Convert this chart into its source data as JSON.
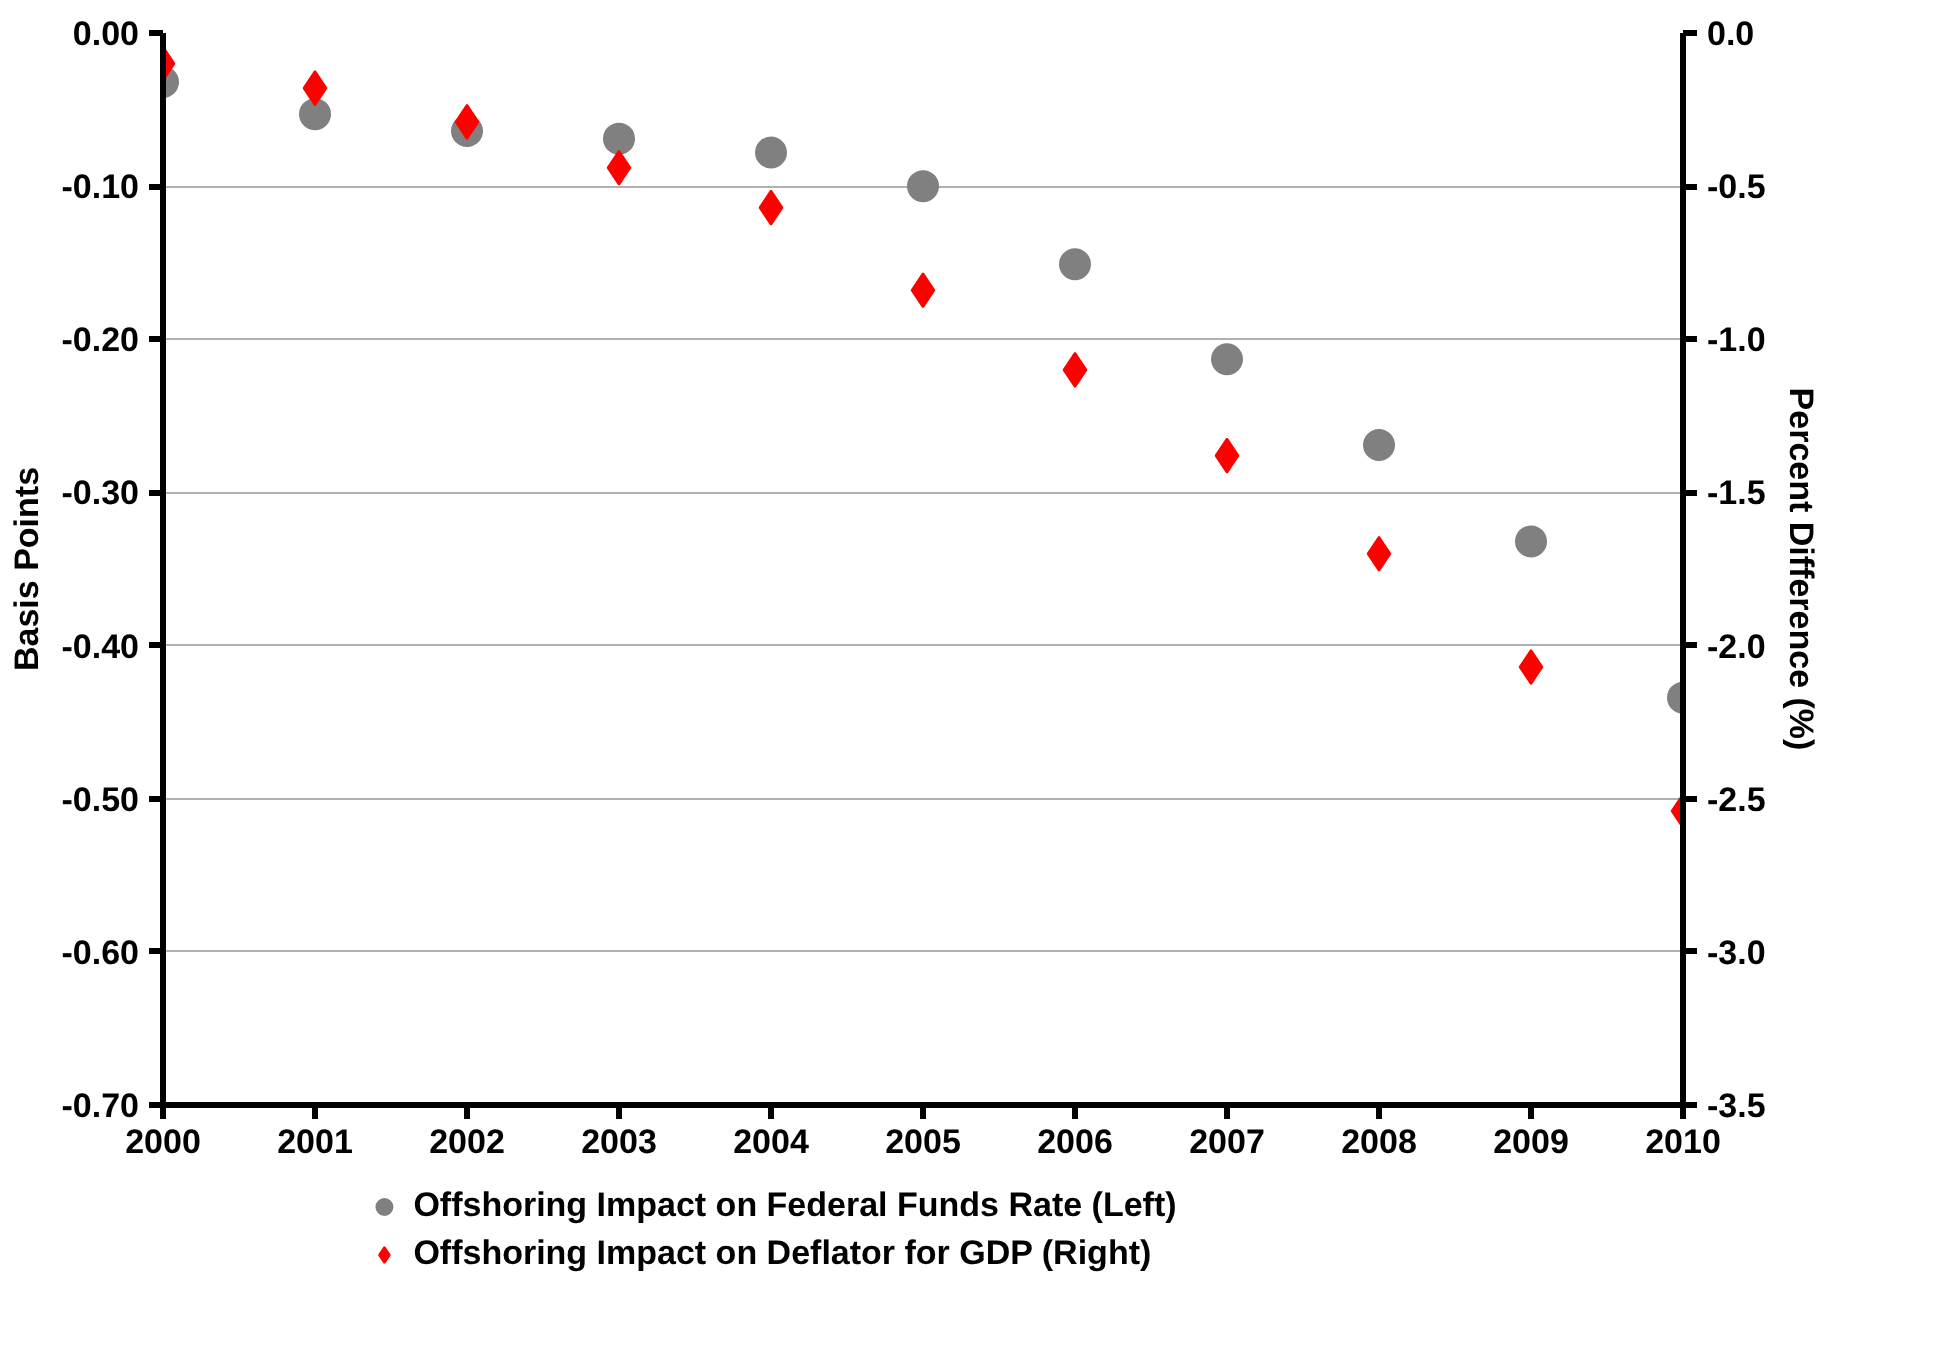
{
  "chart_data": {
    "type": "scatter",
    "ylabel": "Basis Points",
    "y2label": "Percent Difference (%)",
    "x": [
      2000,
      2001,
      2002,
      2003,
      2004,
      2005,
      2006,
      2007,
      2008,
      2009,
      2010
    ],
    "xlim": [
      2000,
      2010
    ],
    "xticks": [
      2000,
      2001,
      2002,
      2003,
      2004,
      2005,
      2006,
      2007,
      2008,
      2009,
      2010
    ],
    "ylim": [
      -0.7,
      0
    ],
    "yticks": [
      {
        "value": -0.7,
        "label": "-0.70"
      },
      {
        "value": -0.6,
        "label": "-0.60"
      },
      {
        "value": -0.5,
        "label": "-0.50"
      },
      {
        "value": -0.4,
        "label": "-0.40"
      },
      {
        "value": -0.3,
        "label": "-0.30"
      },
      {
        "value": -0.2,
        "label": "-0.20"
      },
      {
        "value": -0.1,
        "label": "-0.10"
      },
      {
        "value": 0,
        "label": "0.00"
      }
    ],
    "y2lim": [
      -3.5,
      0
    ],
    "y2ticks": [
      {
        "value": -3.5,
        "label": "-3.5"
      },
      {
        "value": -3,
        "label": "-3.0"
      },
      {
        "value": -2.5,
        "label": "-2.5"
      },
      {
        "value": -2,
        "label": "-2.0"
      },
      {
        "value": -1.5,
        "label": "-1.5"
      },
      {
        "value": -1,
        "label": "-1.0"
      },
      {
        "value": -0.5,
        "label": "-0.5"
      },
      {
        "value": 0,
        "label": "0.0"
      }
    ],
    "grid": "y",
    "legend": "bottom",
    "series": [
      {
        "name": "Offshoring Impact on Federal Funds Rate (Left)",
        "color": "#808080",
        "marker": "circle",
        "values": [
          -0.032,
          -0.053,
          -0.064,
          -0.069,
          -0.078,
          -0.1,
          -0.151,
          -0.213,
          -0.269,
          -0.332,
          -0.434
        ]
      },
      {
        "name": "Offshoring Impact on Deflator for GDP (Right)",
        "color": "#ff0000",
        "marker": "diamond",
        "axis": "y2",
        "values": [
          -0.1,
          -0.18,
          -0.29,
          -0.44,
          -0.57,
          -0.84,
          -1.1,
          -1.38,
          -1.7,
          -2.07,
          -2.54
        ]
      }
    ]
  }
}
